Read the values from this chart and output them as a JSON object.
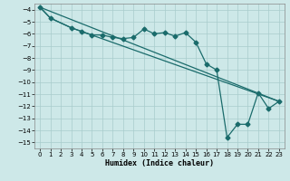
{
  "xlabel": "Humidex (Indice chaleur)",
  "ylabel": "",
  "xlim": [
    -0.5,
    23.5
  ],
  "ylim": [
    -15.5,
    -3.5
  ],
  "yticks": [
    -4,
    -5,
    -6,
    -7,
    -8,
    -9,
    -10,
    -11,
    -12,
    -13,
    -14,
    -15
  ],
  "xticks": [
    0,
    1,
    2,
    3,
    4,
    5,
    6,
    7,
    8,
    9,
    10,
    11,
    12,
    13,
    14,
    15,
    16,
    17,
    18,
    19,
    20,
    21,
    22,
    23
  ],
  "background_color": "#cde8e8",
  "grid_color": "#a8cccc",
  "line_color": "#1a6b6b",
  "line1_x": [
    0,
    1,
    3,
    4,
    5,
    6,
    7,
    8,
    9,
    10,
    11,
    12,
    13,
    14,
    15,
    16,
    17,
    18,
    19,
    20,
    21,
    22,
    23
  ],
  "line1_y": [
    -3.8,
    -4.7,
    -5.5,
    -5.8,
    -6.1,
    -6.1,
    -6.3,
    -6.4,
    -6.3,
    -5.6,
    -6.0,
    -5.9,
    -6.2,
    -5.9,
    -6.7,
    -8.5,
    -9.0,
    -14.6,
    -13.5,
    -13.5,
    -10.9,
    -12.2,
    -11.6
  ],
  "line2_x": [
    0,
    1,
    3,
    23
  ],
  "line2_y": [
    -3.8,
    -4.7,
    -5.5,
    -11.6
  ],
  "line4_x": [
    0,
    23
  ],
  "line4_y": [
    -3.8,
    -11.6
  ],
  "markersize": 2.5,
  "linewidth": 0.9
}
